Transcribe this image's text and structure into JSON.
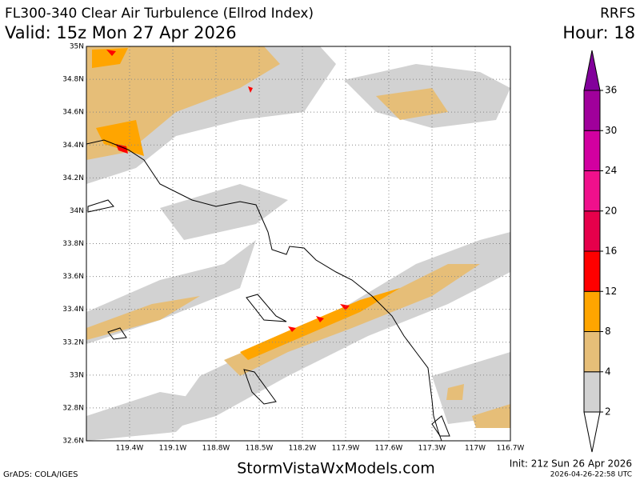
{
  "header": {
    "title": "FL300-340 Clear Air Turbulence (Ellrod Index)",
    "valid": "Valid: 15z Mon 27 Apr 2026",
    "model": "RRFS",
    "hour": "Hour: 18"
  },
  "map": {
    "lat_labels": [
      "35N",
      "34.8N",
      "34.6N",
      "34.4N",
      "34.2N",
      "34N",
      "33.8N",
      "33.6N",
      "33.4N",
      "33.2N",
      "33N",
      "32.8N",
      "32.6N"
    ],
    "lon_labels": [
      "119.4W",
      "119.1W",
      "118.8W",
      "118.5W",
      "118.2W",
      "117.9W",
      "117.6W",
      "117.3W",
      "117W",
      "116.7W"
    ]
  },
  "colorbar": {
    "levels": [
      2,
      4,
      8,
      12,
      16,
      20,
      24,
      30,
      36
    ],
    "colors": [
      "#ffffff",
      "#d2d2d2",
      "#e6be78",
      "#ffa500",
      "#ff0000",
      "#e6004b",
      "#f0108c",
      "#d200a0",
      "#a0009b",
      "#82009b"
    ]
  },
  "footer": {
    "credit": "GrADS: COLA/IGES",
    "site": "StormVistaWxModels.com",
    "init": "Init: 21z Sun 26 Apr 2026",
    "timestamp": "2026-04-26-22:58 UTC"
  }
}
